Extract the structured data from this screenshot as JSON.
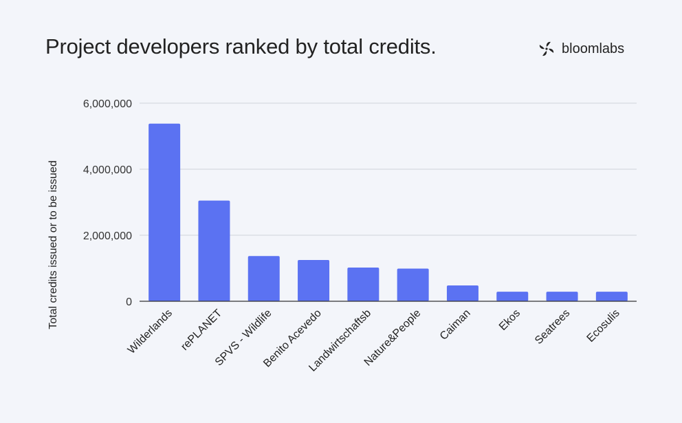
{
  "title": "Project developers ranked by total credits.",
  "brand": {
    "name": "bloomlabs",
    "icon": "bloomlabs-logo-icon"
  },
  "colors": {
    "bar": "#5b72f2",
    "grid": "#cfd2da",
    "axis": "#333333",
    "background": "#f3f5fa"
  },
  "chart_data": {
    "type": "bar",
    "title": "Project developers ranked by total credits.",
    "xlabel": "",
    "ylabel": "Total credits issued or to be issued",
    "categories": [
      "Wilderlands",
      "rePLANET",
      "SPVS - Wildlife",
      "Benito Acevedo",
      "Landwirtschaftsb",
      "Nature&People",
      "Caiman",
      "Ekos",
      "Seatrees",
      "Ecosulis"
    ],
    "values": [
      5380000,
      3050000,
      1370000,
      1250000,
      1020000,
      990000,
      480000,
      290000,
      290000,
      290000
    ],
    "ylim": [
      0,
      6000000
    ],
    "yticks": [
      0,
      2000000,
      4000000,
      6000000
    ],
    "ytick_labels": [
      "0",
      "2,000,000",
      "4,000,000",
      "6,000,000"
    ],
    "grid": true,
    "legend": "none"
  }
}
